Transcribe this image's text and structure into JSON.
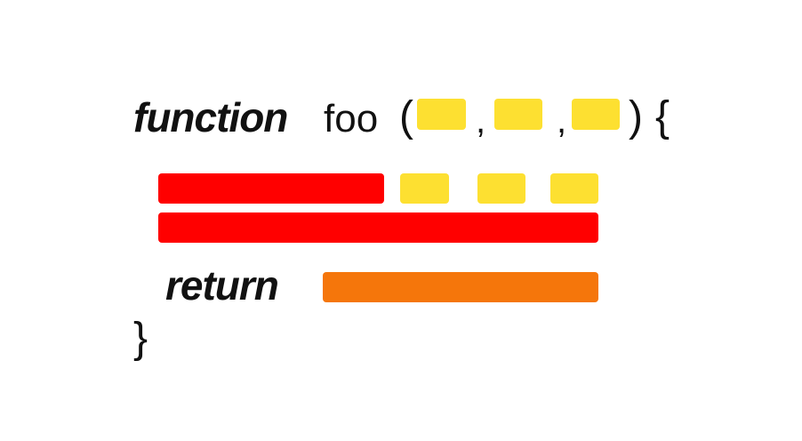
{
  "code": {
    "keyword_function": "function",
    "function_name": "foo",
    "open_paren": "(",
    "comma_1": ",",
    "comma_2": ",",
    "close_paren": ")",
    "open_brace": "{",
    "keyword_return": "return",
    "close_brace": "}"
  },
  "colors": {
    "parameter_placeholder": "#fde031",
    "statement_placeholder": "#ff0000",
    "return_value_placeholder": "#f5760b",
    "text": "#111111",
    "background": "#ffffff"
  },
  "placeholders": {
    "parameters": 3,
    "call_arguments": 3,
    "statements": 2,
    "return_values": 1
  }
}
